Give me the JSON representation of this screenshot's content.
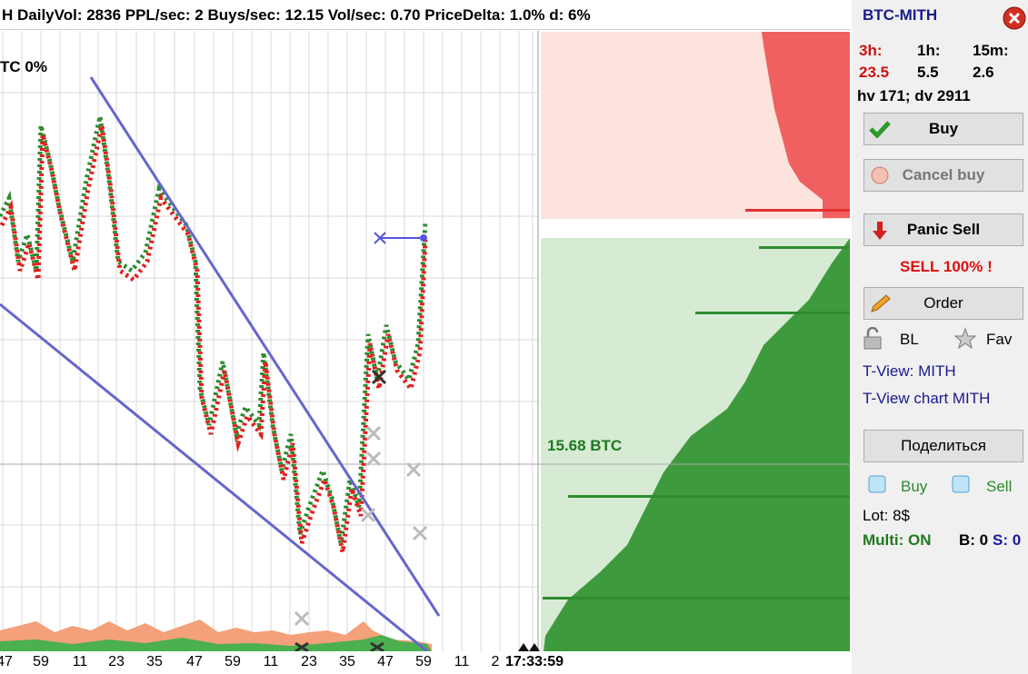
{
  "header": {
    "stats": "H  DailyVol: 2836  PPL/sec: 2  Buys/sec: 12.15  Vol/sec: 0.70  PriceDelta: 1.0%  d: 6%"
  },
  "chart": {
    "pair_change": "TC  0%",
    "x_labels": [
      "47",
      "59",
      "11",
      "23",
      "35",
      "47",
      "59",
      "11",
      "23",
      "35",
      "47",
      "59",
      "11",
      "2",
      "17:33:59"
    ],
    "orderbook_label": "15.68 BTC"
  },
  "panel": {
    "pair": "BTC-MITH",
    "periods": [
      {
        "label": "3h:",
        "value": "23.5"
      },
      {
        "label": "1h:",
        "value": "5.5"
      },
      {
        "label": "15m:",
        "value": "2.6"
      }
    ],
    "volume": "hv 171; dv 2911",
    "buttons": {
      "buy": "Buy",
      "cancel_buy": "Cancel buy",
      "panic_sell": "Panic Sell",
      "order": "Order",
      "share": "Поделиться"
    },
    "sell_warning": "SELL 100% !",
    "bl": "BL",
    "fav": "Fav",
    "links": [
      "T-View: MITH",
      "T-View chart MITH"
    ],
    "ice_buy": "Buy",
    "ice_sell": "Sell",
    "lot": "Lot: 8$",
    "multi": "Multi: ON",
    "b": "B: 0",
    "s": "S: 0"
  }
}
